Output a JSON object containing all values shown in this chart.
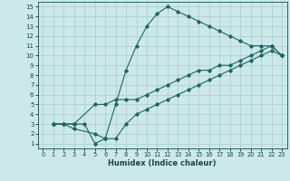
{
  "xlabel": "Humidex (Indice chaleur)",
  "background_color": "#cce8e8",
  "grid_color": "#aacccc",
  "line_color": "#1a6666",
  "xlim": [
    -0.5,
    23.5
  ],
  "ylim": [
    0.5,
    15.5
  ],
  "xticks": [
    0,
    1,
    2,
    3,
    4,
    5,
    6,
    7,
    8,
    9,
    10,
    11,
    12,
    13,
    14,
    15,
    16,
    17,
    18,
    19,
    20,
    21,
    22,
    23
  ],
  "yticks": [
    1,
    2,
    3,
    4,
    5,
    6,
    7,
    8,
    9,
    10,
    11,
    12,
    13,
    14,
    15
  ],
  "line1": {
    "x": [
      1,
      2,
      3,
      4,
      5,
      6,
      7,
      8,
      9,
      10,
      11,
      12,
      13,
      14,
      15,
      16,
      17,
      18,
      19,
      20,
      21,
      22,
      23
    ],
    "y": [
      3,
      3,
      3,
      3,
      1,
      1.5,
      5,
      8.5,
      11,
      13,
      14.3,
      15,
      14.5,
      14,
      13.5,
      13,
      12.5,
      12,
      11.5,
      11,
      11,
      11,
      10
    ]
  },
  "line2": {
    "x": [
      1,
      2,
      3,
      5,
      6,
      7,
      8,
      9,
      10,
      11,
      12,
      13,
      14,
      15,
      16,
      17,
      18,
      19,
      20,
      21,
      22,
      23
    ],
    "y": [
      3,
      3,
      3,
      5,
      5,
      5.5,
      5.5,
      5.5,
      6,
      6.5,
      7,
      7.5,
      8,
      8.5,
      8.5,
      9,
      9,
      9.5,
      10,
      10.5,
      11,
      10
    ]
  },
  "line3": {
    "x": [
      1,
      2,
      3,
      5,
      6,
      7,
      8,
      9,
      10,
      11,
      12,
      13,
      14,
      15,
      16,
      17,
      18,
      19,
      20,
      21,
      22,
      23
    ],
    "y": [
      3,
      3,
      2.5,
      2,
      1.5,
      1.5,
      3,
      4,
      4.5,
      5,
      5.5,
      6,
      6.5,
      7,
      7.5,
      8,
      8.5,
      9,
      9.5,
      10,
      10.5,
      10
    ]
  }
}
